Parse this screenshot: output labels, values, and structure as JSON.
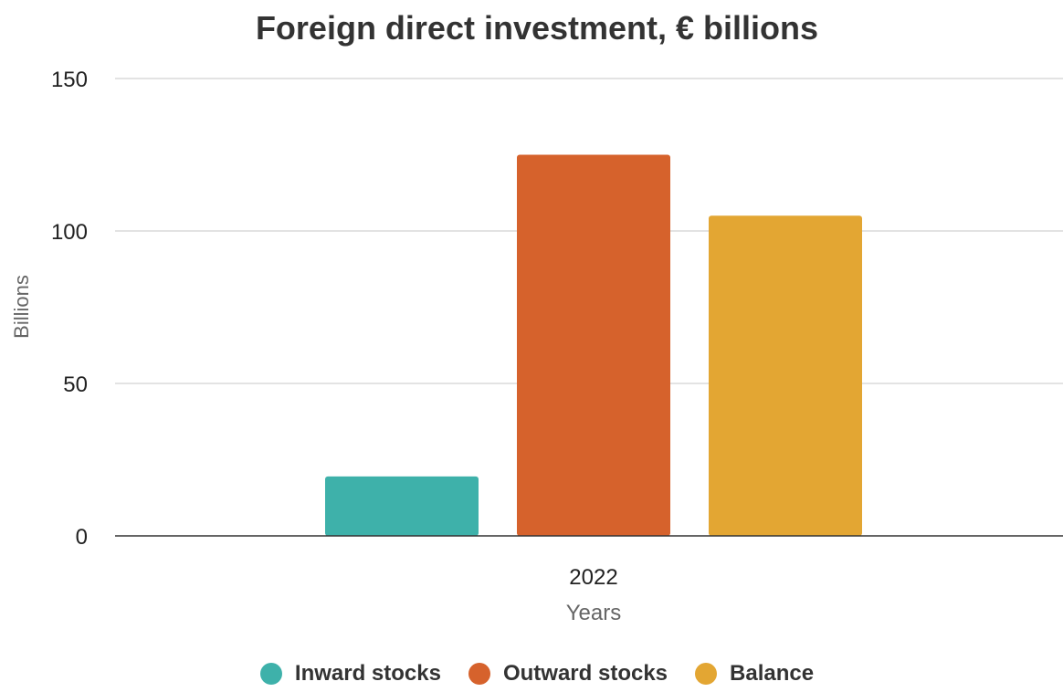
{
  "chart_data": {
    "type": "bar",
    "title": "Foreign direct investment, € billions",
    "xlabel": "Years",
    "ylabel": "Billions",
    "categories": [
      "2022"
    ],
    "series": [
      {
        "name": "Inward stocks",
        "values": [
          19.5
        ],
        "color": "#3eb1aa"
      },
      {
        "name": "Outward stocks",
        "values": [
          125
        ],
        "color": "#d6622c"
      },
      {
        "name": "Balance",
        "values": [
          105
        ],
        "color": "#e3a633"
      }
    ],
    "ylim": [
      0,
      150
    ],
    "yticks": [
      "0",
      "50",
      "100",
      "150"
    ],
    "grid": true,
    "legend": "bottom"
  }
}
